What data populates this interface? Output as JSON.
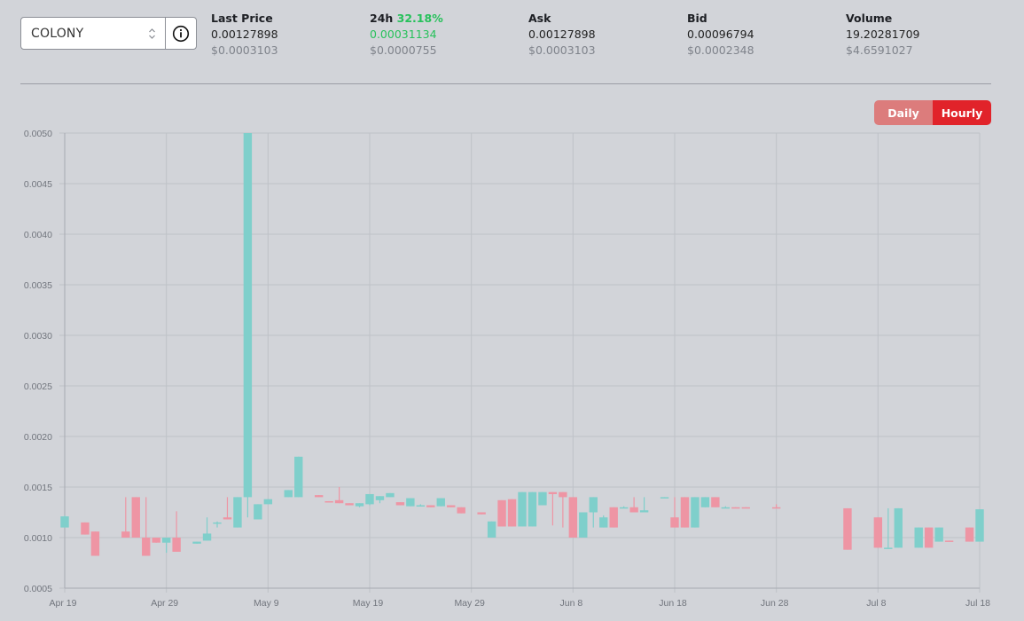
{
  "selector": {
    "value": "COLONY"
  },
  "stats": [
    {
      "label": "Last Price",
      "value": "0.00127898",
      "usd": "$0.0003103"
    },
    {
      "label": "24h",
      "change": "32.18%",
      "value": "0.00031134",
      "usd": "$0.0000755"
    },
    {
      "label": "Ask",
      "value": "0.00127898",
      "usd": "$0.0003103"
    },
    {
      "label": "Bid",
      "value": "0.00096794",
      "usd": "$0.0002348"
    },
    {
      "label": "Volume",
      "value": "19.20281709",
      "usd": "$4.6591027"
    }
  ],
  "toggle": {
    "daily": "Daily",
    "hourly": "Hourly"
  },
  "colors": {
    "up": "#7fcfcb",
    "down": "#ee95a4",
    "active": "#e1232a",
    "inactive": "#dc7c7c",
    "positive": "#27c15b"
  },
  "chart_data": {
    "type": "candlestick",
    "x_start": "Apr 19",
    "x_end": "Jul 18",
    "ylim": [
      0.0005,
      0.005
    ],
    "y_ticks": [
      "0.0005",
      "0.0010",
      "0.0015",
      "0.0020",
      "0.0025",
      "0.0030",
      "0.0035",
      "0.0040",
      "0.0045",
      "0.0050"
    ],
    "x_ticks": [
      {
        "label": "Apr 19",
        "day": 0
      },
      {
        "label": "Apr 29",
        "day": 10
      },
      {
        "label": "May 9",
        "day": 20
      },
      {
        "label": "May 19",
        "day": 30
      },
      {
        "label": "May 29",
        "day": 40
      },
      {
        "label": "Jun 8",
        "day": 50
      },
      {
        "label": "Jun 18",
        "day": 60
      },
      {
        "label": "Jun 28",
        "day": 70
      },
      {
        "label": "Jul 8",
        "day": 80
      },
      {
        "label": "Jul 18",
        "day": 90
      }
    ],
    "candles": [
      {
        "day": 0,
        "open": 0.0011,
        "high": 0.00122,
        "low": 0.0011,
        "close": 0.00121
      },
      {
        "day": 2,
        "open": 0.00115,
        "high": 0.00115,
        "low": 0.00103,
        "close": 0.00103
      },
      {
        "day": 3,
        "open": 0.00106,
        "high": 0.00106,
        "low": 0.00082,
        "close": 0.00082
      },
      {
        "day": 6,
        "open": 0.00106,
        "high": 0.0014,
        "low": 0.001,
        "close": 0.001
      },
      {
        "day": 7,
        "open": 0.0014,
        "high": 0.0014,
        "low": 0.001,
        "close": 0.001
      },
      {
        "day": 8,
        "open": 0.001,
        "high": 0.0014,
        "low": 0.00082,
        "close": 0.00082
      },
      {
        "day": 9,
        "open": 0.001,
        "high": 0.001,
        "low": 0.00095,
        "close": 0.00095
      },
      {
        "day": 10,
        "open": 0.00095,
        "high": 0.001,
        "low": 0.00085,
        "close": 0.001
      },
      {
        "day": 11,
        "open": 0.001,
        "high": 0.00126,
        "low": 0.00086,
        "close": 0.00086
      },
      {
        "day": 13,
        "open": 0.00094,
        "high": 0.00096,
        "low": 0.00094,
        "close": 0.00096
      },
      {
        "day": 14,
        "open": 0.00097,
        "high": 0.0012,
        "low": 0.00097,
        "close": 0.00104
      },
      {
        "day": 15,
        "open": 0.00114,
        "high": 0.00116,
        "low": 0.0011,
        "close": 0.00115
      },
      {
        "day": 16,
        "open": 0.0012,
        "high": 0.0014,
        "low": 0.00118,
        "close": 0.00118
      },
      {
        "day": 17,
        "open": 0.0011,
        "high": 0.0014,
        "low": 0.0011,
        "close": 0.0014
      },
      {
        "day": 18,
        "open": 0.0014,
        "high": 0.005,
        "low": 0.0012,
        "close": 0.005
      },
      {
        "day": 19,
        "open": 0.00118,
        "high": 0.00133,
        "low": 0.00118,
        "close": 0.00133
      },
      {
        "day": 20,
        "open": 0.00133,
        "high": 0.00138,
        "low": 0.00133,
        "close": 0.00138
      },
      {
        "day": 22,
        "open": 0.0014,
        "high": 0.00147,
        "low": 0.0014,
        "close": 0.00147
      },
      {
        "day": 23,
        "open": 0.0014,
        "high": 0.0018,
        "low": 0.0014,
        "close": 0.0018
      },
      {
        "day": 25,
        "open": 0.00142,
        "high": 0.00142,
        "low": 0.0014,
        "close": 0.0014
      },
      {
        "day": 26,
        "open": 0.00136,
        "high": 0.00136,
        "low": 0.00135,
        "close": 0.00135
      },
      {
        "day": 27,
        "open": 0.00137,
        "high": 0.0015,
        "low": 0.00134,
        "close": 0.00134
      },
      {
        "day": 28,
        "open": 0.00134,
        "high": 0.00134,
        "low": 0.00132,
        "close": 0.00132
      },
      {
        "day": 29,
        "open": 0.00131,
        "high": 0.00134,
        "low": 0.0013,
        "close": 0.00134
      },
      {
        "day": 30,
        "open": 0.00133,
        "high": 0.00143,
        "low": 0.00132,
        "close": 0.00143
      },
      {
        "day": 31,
        "open": 0.00137,
        "high": 0.00141,
        "low": 0.00134,
        "close": 0.00141
      },
      {
        "day": 32,
        "open": 0.0014,
        "high": 0.00144,
        "low": 0.0014,
        "close": 0.00144
      },
      {
        "day": 33,
        "open": 0.00135,
        "high": 0.00135,
        "low": 0.00132,
        "close": 0.00132
      },
      {
        "day": 34,
        "open": 0.00131,
        "high": 0.00139,
        "low": 0.00131,
        "close": 0.00139
      },
      {
        "day": 35,
        "open": 0.00132,
        "high": 0.00133,
        "low": 0.00131,
        "close": 0.00132
      },
      {
        "day": 36,
        "open": 0.00132,
        "high": 0.00132,
        "low": 0.0013,
        "close": 0.0013
      },
      {
        "day": 37,
        "open": 0.00131,
        "high": 0.00139,
        "low": 0.00131,
        "close": 0.00139
      },
      {
        "day": 38,
        "open": 0.00132,
        "high": 0.00132,
        "low": 0.0013,
        "close": 0.0013
      },
      {
        "day": 39,
        "open": 0.0013,
        "high": 0.0013,
        "low": 0.00124,
        "close": 0.00124
      },
      {
        "day": 41,
        "open": 0.00125,
        "high": 0.00125,
        "low": 0.00123,
        "close": 0.00123
      },
      {
        "day": 42,
        "open": 0.001,
        "high": 0.00116,
        "low": 0.001,
        "close": 0.00116
      },
      {
        "day": 43,
        "open": 0.00137,
        "high": 0.00137,
        "low": 0.00111,
        "close": 0.00111
      },
      {
        "day": 44,
        "open": 0.00138,
        "high": 0.00138,
        "low": 0.00111,
        "close": 0.00111
      },
      {
        "day": 45,
        "open": 0.00111,
        "high": 0.00145,
        "low": 0.00111,
        "close": 0.00145
      },
      {
        "day": 46,
        "open": 0.00111,
        "high": 0.00145,
        "low": 0.00111,
        "close": 0.00145
      },
      {
        "day": 47,
        "open": 0.00132,
        "high": 0.00145,
        "low": 0.00132,
        "close": 0.00145
      },
      {
        "day": 48,
        "open": 0.00145,
        "high": 0.00145,
        "low": 0.00112,
        "close": 0.00143
      },
      {
        "day": 49,
        "open": 0.00145,
        "high": 0.00145,
        "low": 0.0011,
        "close": 0.0014
      },
      {
        "day": 50,
        "open": 0.0014,
        "high": 0.0014,
        "low": 0.001,
        "close": 0.001
      },
      {
        "day": 51,
        "open": 0.001,
        "high": 0.00125,
        "low": 0.001,
        "close": 0.00125
      },
      {
        "day": 52,
        "open": 0.00125,
        "high": 0.0014,
        "low": 0.0011,
        "close": 0.0014
      },
      {
        "day": 53,
        "open": 0.0011,
        "high": 0.00122,
        "low": 0.0011,
        "close": 0.0012
      },
      {
        "day": 54,
        "open": 0.0013,
        "high": 0.0013,
        "low": 0.0011,
        "close": 0.0011
      },
      {
        "day": 55,
        "open": 0.0013,
        "high": 0.00131,
        "low": 0.00129,
        "close": 0.0013
      },
      {
        "day": 56,
        "open": 0.0013,
        "high": 0.0014,
        "low": 0.00125,
        "close": 0.00125
      },
      {
        "day": 57,
        "open": 0.00125,
        "high": 0.0014,
        "low": 0.00125,
        "close": 0.00127
      },
      {
        "day": 59,
        "open": 0.0014,
        "high": 0.0014,
        "low": 0.00139,
        "close": 0.0014
      },
      {
        "day": 60,
        "open": 0.0012,
        "high": 0.0014,
        "low": 0.0011,
        "close": 0.0011
      },
      {
        "day": 61,
        "open": 0.0014,
        "high": 0.0014,
        "low": 0.0011,
        "close": 0.0011
      },
      {
        "day": 62,
        "open": 0.0011,
        "high": 0.0014,
        "low": 0.0011,
        "close": 0.0014
      },
      {
        "day": 63,
        "open": 0.0013,
        "high": 0.0014,
        "low": 0.0013,
        "close": 0.0014
      },
      {
        "day": 64,
        "open": 0.0014,
        "high": 0.0014,
        "low": 0.0013,
        "close": 0.0013
      },
      {
        "day": 65,
        "open": 0.0013,
        "high": 0.00131,
        "low": 0.00129,
        "close": 0.0013
      },
      {
        "day": 66,
        "open": 0.0013,
        "high": 0.0013,
        "low": 0.00129,
        "close": 0.00129
      },
      {
        "day": 67,
        "open": 0.0013,
        "high": 0.0013,
        "low": 0.00129,
        "close": 0.00129
      },
      {
        "day": 70,
        "open": 0.0013,
        "high": 0.00133,
        "low": 0.00129,
        "close": 0.00129
      },
      {
        "day": 77,
        "open": 0.00129,
        "high": 0.00129,
        "low": 0.00088,
        "close": 0.00088
      },
      {
        "day": 80,
        "open": 0.0012,
        "high": 0.0012,
        "low": 0.0009,
        "close": 0.0009
      },
      {
        "day": 81,
        "open": 0.0009,
        "high": 0.00129,
        "low": 0.0009,
        "close": 0.0009
      },
      {
        "day": 82,
        "open": 0.0009,
        "high": 0.00129,
        "low": 0.0009,
        "close": 0.00129
      },
      {
        "day": 84,
        "open": 0.0009,
        "high": 0.0011,
        "low": 0.0009,
        "close": 0.0011
      },
      {
        "day": 85,
        "open": 0.0011,
        "high": 0.0011,
        "low": 0.0009,
        "close": 0.0009
      },
      {
        "day": 86,
        "open": 0.00096,
        "high": 0.0011,
        "low": 0.00096,
        "close": 0.0011
      },
      {
        "day": 87,
        "open": 0.00097,
        "high": 0.00097,
        "low": 0.00096,
        "close": 0.00096
      },
      {
        "day": 89,
        "open": 0.0011,
        "high": 0.0011,
        "low": 0.00096,
        "close": 0.00096
      },
      {
        "day": 90,
        "open": 0.00096,
        "high": 0.00128,
        "low": 0.00096,
        "close": 0.00128
      }
    ]
  }
}
